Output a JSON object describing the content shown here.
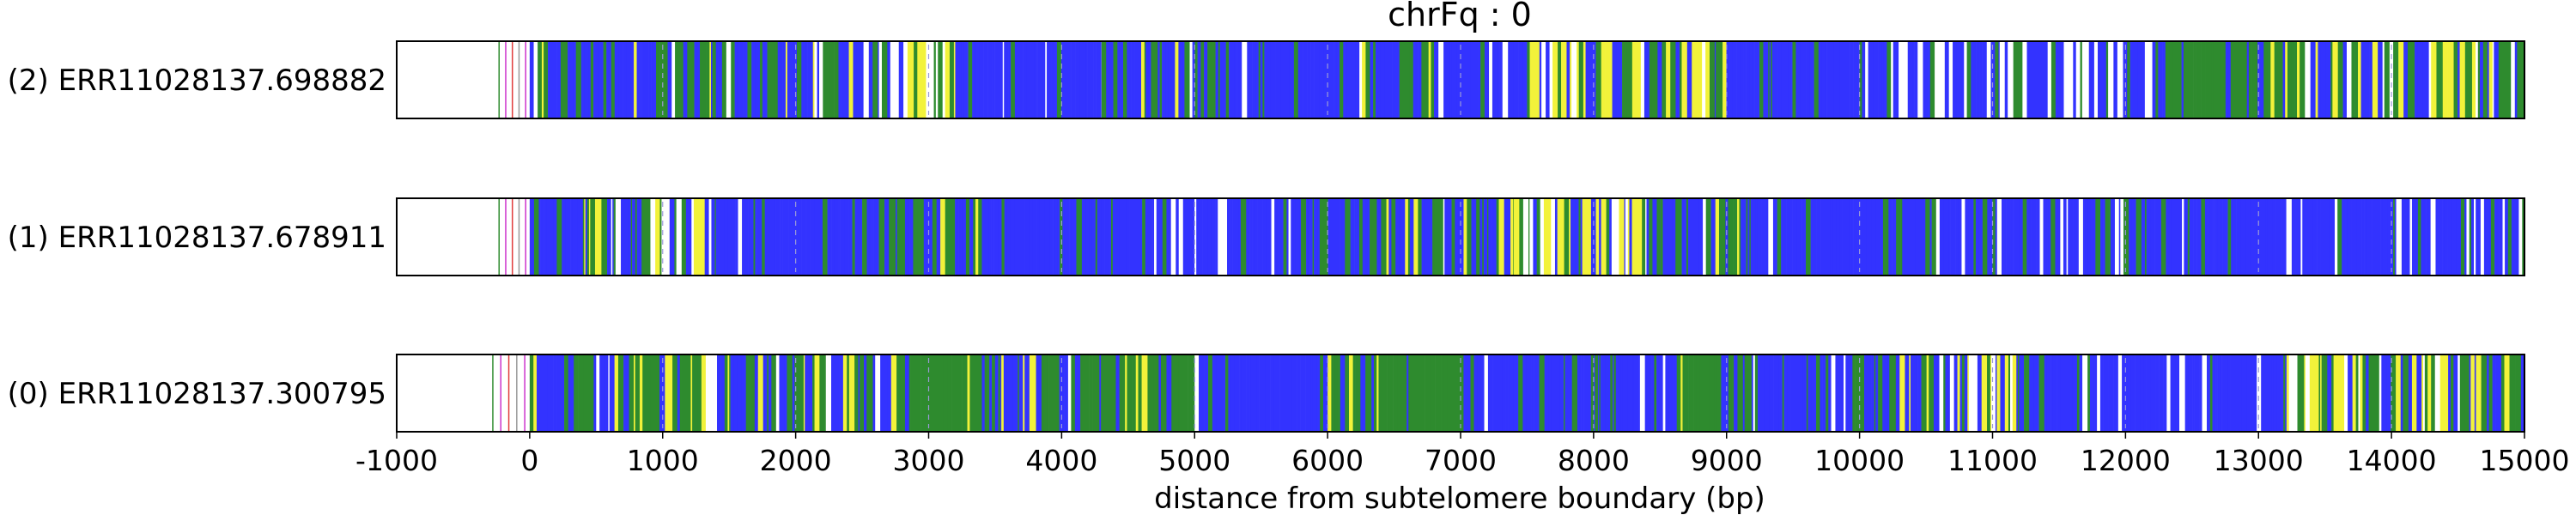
{
  "chart_data": {
    "type": "heatmap",
    "title": "chrFq : 0",
    "xlabel": "distance from subtelomere boundary (bp)",
    "ylabel": "",
    "xlim": [
      -1000,
      15000
    ],
    "xticks": [
      -1000,
      0,
      1000,
      2000,
      3000,
      4000,
      5000,
      6000,
      7000,
      8000,
      9000,
      10000,
      11000,
      12000,
      13000,
      14000,
      15000
    ],
    "grid": false,
    "colors": {
      "blue": "#3333ff",
      "green": "#2e8b2e",
      "yellow": "#f2f23a",
      "white": "#ffffff",
      "magenta": "#cc33cc",
      "red": "#e03c3c",
      "gray": "#999999"
    },
    "reads": [
      {
        "label": "(2) ERR11028137.698882",
        "start": -250,
        "segments": [
          {
            "from": -250,
            "to": 0,
            "pattern": "sparse"
          },
          {
            "from": 0,
            "to": 1400,
            "pattern": "mixed"
          },
          {
            "from": 1400,
            "to": 1700,
            "pattern": "blue"
          },
          {
            "from": 1700,
            "to": 2400,
            "pattern": "mixed"
          },
          {
            "from": 2400,
            "to": 3200,
            "pattern": "yellow-mixed"
          },
          {
            "from": 3200,
            "to": 4300,
            "pattern": "blue"
          },
          {
            "from": 4300,
            "to": 5200,
            "pattern": "mixed"
          },
          {
            "from": 5200,
            "to": 6000,
            "pattern": "blue"
          },
          {
            "from": 6000,
            "to": 6800,
            "pattern": "mixed"
          },
          {
            "from": 6800,
            "to": 7500,
            "pattern": "blue"
          },
          {
            "from": 7500,
            "to": 9000,
            "pattern": "yellow-mixed"
          },
          {
            "from": 9000,
            "to": 10000,
            "pattern": "blue"
          },
          {
            "from": 10000,
            "to": 12300,
            "pattern": "white-blue"
          },
          {
            "from": 12300,
            "to": 13200,
            "pattern": "green"
          },
          {
            "from": 13200,
            "to": 15000,
            "pattern": "yellow-mixed"
          }
        ]
      },
      {
        "label": "(1) ERR11028137.678911",
        "start": -250,
        "segments": [
          {
            "from": -250,
            "to": 0,
            "pattern": "sparse"
          },
          {
            "from": 0,
            "to": 400,
            "pattern": "blue"
          },
          {
            "from": 400,
            "to": 1400,
            "pattern": "yellow-mixed"
          },
          {
            "from": 1400,
            "to": 2500,
            "pattern": "blue"
          },
          {
            "from": 2500,
            "to": 3400,
            "pattern": "mixed"
          },
          {
            "from": 3400,
            "to": 6200,
            "pattern": "blue"
          },
          {
            "from": 6200,
            "to": 7400,
            "pattern": "mixed"
          },
          {
            "from": 7400,
            "to": 8500,
            "pattern": "yellow-mixed"
          },
          {
            "from": 8500,
            "to": 9200,
            "pattern": "mixed"
          },
          {
            "from": 9200,
            "to": 15000,
            "pattern": "blue"
          }
        ]
      },
      {
        "label": "(0) ERR11028137.300795",
        "start": -300,
        "segments": [
          {
            "from": -300,
            "to": 0,
            "pattern": "sparse"
          },
          {
            "from": 0,
            "to": 500,
            "pattern": "mixed"
          },
          {
            "from": 500,
            "to": 1500,
            "pattern": "yellow-mixed"
          },
          {
            "from": 1500,
            "to": 2800,
            "pattern": "mixed"
          },
          {
            "from": 2800,
            "to": 3400,
            "pattern": "green"
          },
          {
            "from": 3400,
            "to": 4100,
            "pattern": "mixed"
          },
          {
            "from": 4100,
            "to": 5000,
            "pattern": "green"
          },
          {
            "from": 5000,
            "to": 6000,
            "pattern": "blue"
          },
          {
            "from": 6000,
            "to": 7100,
            "pattern": "green"
          },
          {
            "from": 7100,
            "to": 8600,
            "pattern": "blue"
          },
          {
            "from": 8600,
            "to": 9200,
            "pattern": "green"
          },
          {
            "from": 9200,
            "to": 10000,
            "pattern": "blue"
          },
          {
            "from": 10000,
            "to": 10600,
            "pattern": "mixed"
          },
          {
            "from": 10600,
            "to": 11200,
            "pattern": "yellow-mixed"
          },
          {
            "from": 11200,
            "to": 13200,
            "pattern": "blue"
          },
          {
            "from": 13200,
            "to": 15000,
            "pattern": "yellow-mixed"
          }
        ]
      }
    ]
  }
}
